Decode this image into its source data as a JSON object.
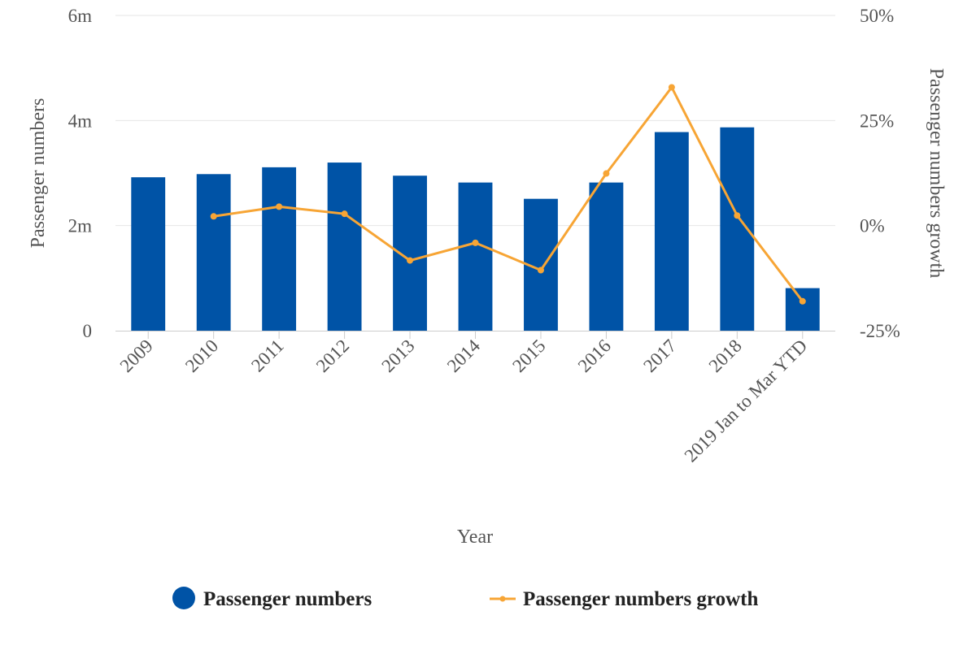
{
  "chart_data": {
    "type": "bar",
    "xlabel": "Year",
    "categories": [
      "2009",
      "2010",
      "2011",
      "2012",
      "2013",
      "2014",
      "2015",
      "2016",
      "2017",
      "2018",
      "2019 Jan to Mar YTD"
    ],
    "left_axis": {
      "label": "Passenger numbers",
      "ticks": [
        {
          "value": 0,
          "label": "0"
        },
        {
          "value": 2000000,
          "label": "2m"
        },
        {
          "value": 4000000,
          "label": "4m"
        },
        {
          "value": 6000000,
          "label": "6m"
        }
      ],
      "range": [
        0,
        6000000
      ]
    },
    "right_axis": {
      "label": "Passenger numbers growth",
      "ticks": [
        {
          "value": -25,
          "label": "-25%"
        },
        {
          "value": 0,
          "label": "0%"
        },
        {
          "value": 25,
          "label": "25%"
        },
        {
          "value": 50,
          "label": "50%"
        }
      ],
      "range": [
        -25,
        50
      ]
    },
    "series": [
      {
        "name": "Passenger numbers",
        "type": "bar",
        "axis": "left",
        "color": "#0053a6",
        "values": [
          2920000,
          2980000,
          3110000,
          3200000,
          2950000,
          2820000,
          2510000,
          2820000,
          3780000,
          3870000,
          810000
        ]
      },
      {
        "name": "Passenger numbers growth",
        "type": "line",
        "axis": "right",
        "color": "#f7a535",
        "values": [
          null,
          2.2,
          4.5,
          2.8,
          -8.3,
          -4.1,
          -10.6,
          12.4,
          32.9,
          2.4,
          -18
        ]
      }
    ],
    "grid": true,
    "legend_position": "bottom-center"
  }
}
